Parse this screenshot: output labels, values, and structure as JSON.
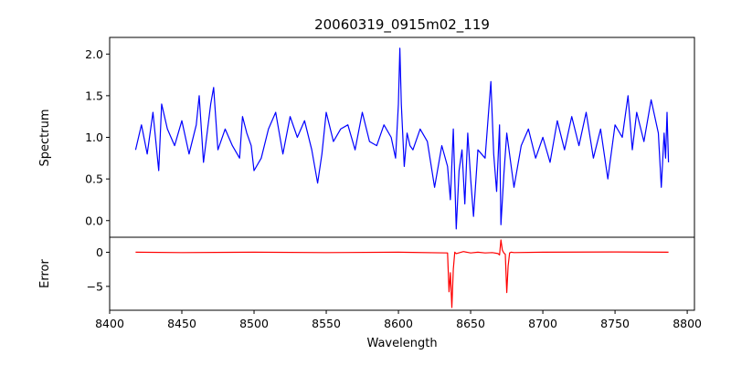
{
  "chart_data": [
    {
      "type": "line",
      "title": "20060319_0915m02_119",
      "xlabel": "",
      "ylabel": "Spectrum",
      "xlim": [
        8400,
        8805
      ],
      "ylim": [
        -0.2,
        2.2
      ],
      "yticks": [
        0.0,
        0.5,
        1.0,
        1.5,
        2.0
      ],
      "ytick_labels": [
        "0.0",
        "0.5",
        "1.0",
        "1.5",
        "2.0"
      ],
      "grid": false,
      "series": [
        {
          "name": "spectrum",
          "color": "#0000ff",
          "x": [
            8418,
            8422,
            8426,
            8430,
            8434,
            8436,
            8440,
            8445,
            8450,
            8455,
            8460,
            8462,
            8465,
            8470,
            8472,
            8475,
            8480,
            8485,
            8490,
            8492,
            8495,
            8498,
            8500,
            8505,
            8510,
            8515,
            8520,
            8525,
            8530,
            8535,
            8540,
            8544,
            8547,
            8550,
            8555,
            8560,
            8565,
            8570,
            8575,
            8580,
            8585,
            8590,
            8595,
            8598,
            8600,
            8601,
            8602,
            8604,
            8606,
            8608,
            8610,
            8615,
            8620,
            8625,
            8630,
            8634,
            8636,
            8638,
            8640,
            8642,
            8644,
            8646,
            8648,
            8650,
            8652,
            8655,
            8660,
            8664,
            8666,
            8668,
            8670,
            8671,
            8673,
            8675,
            8680,
            8685,
            8690,
            8695,
            8700,
            8705,
            8710,
            8715,
            8720,
            8725,
            8730,
            8735,
            8740,
            8745,
            8750,
            8755,
            8759,
            8762,
            8765,
            8770,
            8775,
            8780,
            8782,
            8784,
            8785,
            8786,
            8787
          ],
          "y": [
            0.85,
            1.15,
            0.8,
            1.3,
            0.6,
            1.4,
            1.1,
            0.9,
            1.2,
            0.8,
            1.15,
            1.5,
            0.7,
            1.4,
            1.6,
            0.85,
            1.1,
            0.9,
            0.75,
            1.25,
            1.05,
            0.9,
            0.6,
            0.75,
            1.1,
            1.3,
            0.8,
            1.25,
            1.0,
            1.2,
            0.85,
            0.45,
            0.8,
            1.3,
            0.95,
            1.1,
            1.15,
            0.85,
            1.3,
            0.95,
            0.9,
            1.15,
            1.0,
            0.75,
            1.4,
            2.07,
            1.4,
            0.65,
            1.05,
            0.9,
            0.85,
            1.1,
            0.95,
            0.4,
            0.9,
            0.65,
            0.25,
            1.1,
            -0.1,
            0.6,
            0.85,
            0.2,
            1.05,
            0.5,
            0.05,
            0.85,
            0.75,
            1.67,
            0.8,
            0.35,
            1.15,
            -0.05,
            0.55,
            1.05,
            0.4,
            0.9,
            1.1,
            0.75,
            1.0,
            0.7,
            1.2,
            0.85,
            1.25,
            0.9,
            1.3,
            0.75,
            1.1,
            0.5,
            1.15,
            1.0,
            1.5,
            0.85,
            1.3,
            0.95,
            1.45,
            1.05,
            0.4,
            1.05,
            0.75,
            1.3,
            0.7
          ]
        }
      ]
    },
    {
      "type": "line",
      "title": "",
      "xlabel": "Wavelength",
      "ylabel": "Error",
      "xlim": [
        8400,
        8805
      ],
      "ylim": [
        -8.5,
        2.2
      ],
      "xticks": [
        8400,
        8450,
        8500,
        8550,
        8600,
        8650,
        8700,
        8750,
        8800
      ],
      "xtick_labels": [
        "8400",
        "8450",
        "8500",
        "8550",
        "8600",
        "8650",
        "8700",
        "8750",
        "8800"
      ],
      "yticks": [
        0,
        -5
      ],
      "ytick_labels": [
        "0",
        "−5"
      ],
      "grid": false,
      "series": [
        {
          "name": "error",
          "color": "#ff0000",
          "x": [
            8418,
            8450,
            8500,
            8550,
            8600,
            8634,
            8635,
            8636,
            8637,
            8638,
            8639,
            8640,
            8645,
            8650,
            8655,
            8660,
            8665,
            8669,
            8670,
            8671,
            8672,
            8673,
            8674,
            8675,
            8676,
            8677,
            8678,
            8680,
            8700,
            8750,
            8787
          ],
          "y": [
            0.0,
            -0.05,
            0.0,
            -0.05,
            0.0,
            -0.1,
            -5.8,
            -3.0,
            -8.1,
            -2.5,
            0.0,
            -0.2,
            0.1,
            -0.1,
            0.0,
            -0.1,
            -0.05,
            -0.2,
            -0.4,
            1.8,
            0.3,
            -0.1,
            -0.3,
            -5.9,
            -2.0,
            -0.1,
            0.0,
            -0.05,
            0.0,
            0.05,
            0.0
          ]
        }
      ]
    }
  ]
}
